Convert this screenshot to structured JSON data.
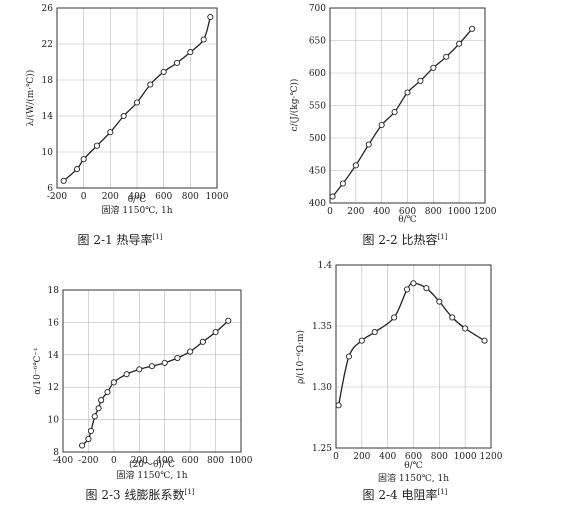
{
  "chart_data": [
    {
      "type": "line",
      "title": "图 2-1  热导率",
      "title_ref": "[1]",
      "xlabel": "θ/℃",
      "ylabel": "λ/(W/(m·℃))",
      "note": "固溶 1150℃, 1h",
      "xlim": [
        -200,
        1000
      ],
      "ylim": [
        6,
        26
      ],
      "xticks": [
        -200,
        0,
        200,
        400,
        600,
        800,
        1000
      ],
      "xtick_labels": [
        "-200",
        "0",
        "200",
        "400",
        "600",
        "800",
        "1000"
      ],
      "yticks": [
        6,
        10,
        14,
        18,
        22,
        26
      ],
      "ytick_labels": [
        "6",
        "10",
        "14",
        "18",
        "22",
        "26"
      ],
      "grid": true,
      "x": [
        -150,
        -50,
        0,
        100,
        200,
        300,
        400,
        500,
        600,
        700,
        800,
        900,
        950
      ],
      "y": [
        6.8,
        8.1,
        9.2,
        10.7,
        12.2,
        14.0,
        15.5,
        17.5,
        18.9,
        19.9,
        21.1,
        22.5,
        25.0
      ]
    },
    {
      "type": "line",
      "title": "图 2-2  比热容",
      "title_ref": "[1]",
      "xlabel": "θ/℃",
      "ylabel": "c/(J/(kg·℃))",
      "note": "",
      "xlim": [
        0,
        1200
      ],
      "ylim": [
        400,
        700
      ],
      "xticks": [
        0,
        200,
        400,
        600,
        800,
        1000,
        1200
      ],
      "xtick_labels": [
        "0",
        "200",
        "400",
        "600",
        "800",
        "1000",
        "1200"
      ],
      "yticks": [
        400,
        450,
        500,
        550,
        600,
        650,
        700
      ],
      "ytick_labels": [
        "400",
        "450",
        "500",
        "550",
        "600",
        "650",
        "700"
      ],
      "grid": true,
      "x": [
        20,
        100,
        200,
        300,
        400,
        500,
        600,
        700,
        800,
        900,
        1000,
        1100
      ],
      "y": [
        410,
        430,
        458,
        490,
        520,
        540,
        570,
        588,
        608,
        625,
        645,
        668
      ]
    },
    {
      "type": "line",
      "title": "图 2-3  线膨胀系数",
      "title_ref": "[1]",
      "xlabel": "(20～θ)/℃",
      "ylabel": "α/10⁻⁶℃⁻¹",
      "note": "固溶 1150℃, 1h",
      "xlim": [
        -400,
        1000
      ],
      "ylim": [
        8,
        18
      ],
      "xticks": [
        -400,
        -200,
        0,
        200,
        400,
        600,
        800,
        1000
      ],
      "xtick_labels": [
        "-400",
        "-200",
        "0",
        "200",
        "400",
        "600",
        "800",
        "1000"
      ],
      "yticks": [
        8,
        10,
        12,
        14,
        16,
        18
      ],
      "ytick_labels": [
        "8",
        "10",
        "12",
        "14",
        "16",
        "18"
      ],
      "grid": true,
      "x": [
        -250,
        -200,
        -180,
        -150,
        -120,
        -100,
        -50,
        0,
        100,
        200,
        300,
        400,
        500,
        600,
        700,
        800,
        900
      ],
      "y": [
        8.4,
        8.8,
        9.3,
        10.2,
        10.7,
        11.2,
        11.7,
        12.3,
        12.8,
        13.1,
        13.3,
        13.5,
        13.8,
        14.2,
        14.8,
        15.4,
        16.1
      ]
    },
    {
      "type": "line",
      "title": "图 2-4  电阻率",
      "title_ref": "[1]",
      "xlabel": "θ/℃",
      "ylabel": "ρ/(10⁻⁶Ω·m)",
      "note": "固溶 1150℃, 1h",
      "xlim": [
        0,
        1200
      ],
      "ylim": [
        1.25,
        1.4
      ],
      "xticks": [
        0,
        200,
        400,
        600,
        800,
        1000,
        1200
      ],
      "xtick_labels": [
        "0",
        "200",
        "400",
        "600",
        "800",
        "1000",
        "1200"
      ],
      "yticks": [
        1.25,
        1.3,
        1.35,
        1.4
      ],
      "ytick_labels": [
        "1.25",
        "1.30",
        "1.35",
        "1.4"
      ],
      "grid": true,
      "x": [
        20,
        100,
        200,
        300,
        450,
        550,
        600,
        700,
        800,
        900,
        1000,
        1150
      ],
      "y": [
        1.285,
        1.325,
        1.338,
        1.345,
        1.357,
        1.38,
        1.385,
        1.381,
        1.37,
        1.357,
        1.348,
        1.338
      ]
    }
  ]
}
